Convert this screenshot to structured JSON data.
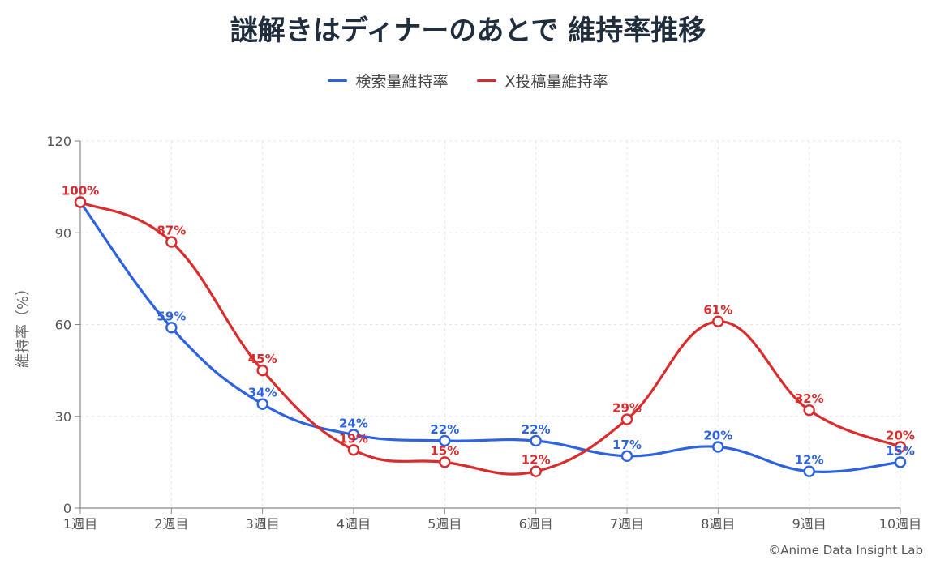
{
  "chart_data": {
    "type": "line",
    "title": "謎解きはディナーのあとで 維持率推移",
    "xlabel": "",
    "ylabel": "維持率（%）",
    "ylim": [
      0,
      120
    ],
    "yticks": [
      0,
      30,
      60,
      90,
      120
    ],
    "categories": [
      "1週目",
      "2週目",
      "3週目",
      "4週目",
      "5週目",
      "6週目",
      "7週目",
      "8週目",
      "9週目",
      "10週目"
    ],
    "grid": true,
    "legend_position": "top-center",
    "series": [
      {
        "name": "検索量維持率",
        "color": "#2d62e0",
        "values": [
          100,
          59,
          34,
          24,
          22,
          22,
          17,
          20,
          12,
          15
        ],
        "labels": [
          "100%",
          "59%",
          "34%",
          "24%",
          "22%",
          "22%",
          "17%",
          "20%",
          "12%",
          "15%"
        ]
      },
      {
        "name": "X投稿量維持率",
        "color": "#d92c2c",
        "values": [
          100,
          87,
          45,
          19,
          15,
          12,
          29,
          61,
          32,
          20
        ],
        "labels": [
          "100%",
          "87%",
          "45%",
          "19%",
          "15%",
          "12%",
          "29%",
          "61%",
          "32%",
          "20%"
        ]
      }
    ]
  },
  "credit": "©Anime Data Insight Lab"
}
